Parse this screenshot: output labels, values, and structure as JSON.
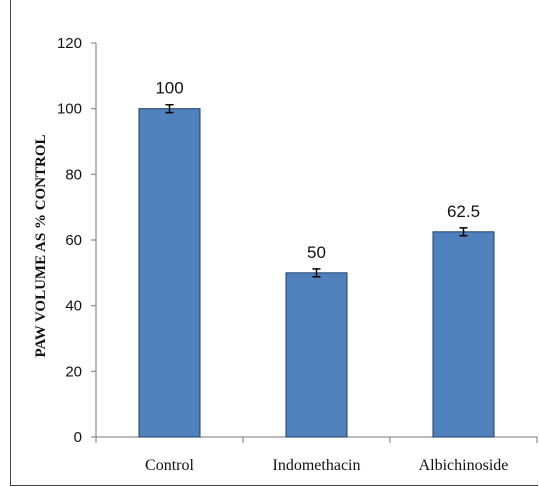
{
  "chart_data": {
    "type": "bar",
    "title": "",
    "xlabel": "",
    "ylabel": "PAW VOLUME AS % CONTROL",
    "categories": [
      "Control",
      "Indomethacin",
      "Albichinoside"
    ],
    "values": [
      100,
      50,
      62.5
    ],
    "errors": [
      1.2,
      1.2,
      1.2
    ],
    "data_labels": [
      "100",
      "50",
      "62.5"
    ],
    "ylim": [
      0,
      120
    ],
    "yticks": [
      0,
      20,
      40,
      60,
      80,
      100,
      120
    ],
    "ytick_labels": [
      "0",
      "20",
      "40",
      "60",
      "80",
      "100",
      "120"
    ],
    "grid": false,
    "legend": "none",
    "bar_color": "#4f81bd",
    "bar_edge_color": "#1f3f66"
  }
}
